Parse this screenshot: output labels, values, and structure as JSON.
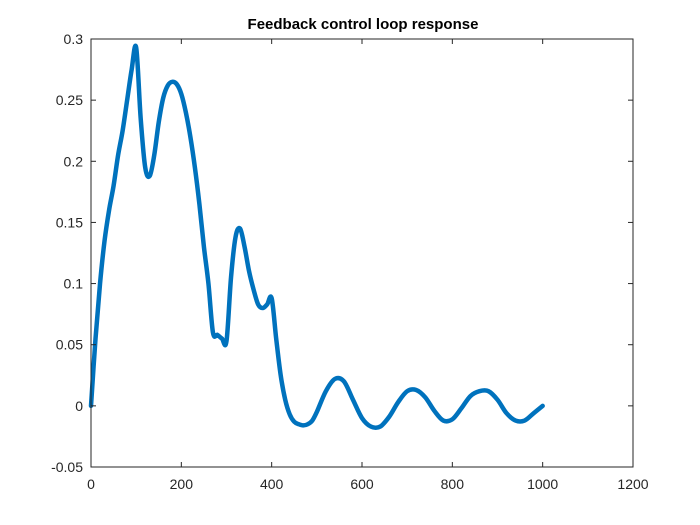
{
  "chart_data": {
    "type": "line",
    "title": "Feedback control loop response",
    "xlabel": "",
    "ylabel": "",
    "xlim": [
      0,
      1200
    ],
    "ylim": [
      -0.05,
      0.3
    ],
    "xticks": [
      0,
      200,
      400,
      600,
      800,
      1000,
      1200
    ],
    "xtick_labels": [
      "0",
      "200",
      "400",
      "600",
      "800",
      "1000",
      "1200"
    ],
    "yticks": [
      -0.05,
      0,
      0.05,
      0.1,
      0.15,
      0.2,
      0.25,
      0.3
    ],
    "ytick_labels": [
      "-0.05",
      "0",
      "0.05",
      "0.1",
      "0.15",
      "0.2",
      "0.25",
      "0.3"
    ],
    "grid": false,
    "series": [
      {
        "color": "#0072BD",
        "x": [
          0,
          10,
          20,
          30,
          40,
          50,
          60,
          70,
          80,
          90,
          100,
          110,
          120,
          130,
          140,
          150,
          160,
          170,
          180,
          190,
          200,
          210,
          220,
          230,
          240,
          250,
          260,
          270,
          280,
          290,
          300,
          310,
          320,
          330,
          340,
          350,
          360,
          370,
          380,
          390,
          400,
          410,
          420,
          430,
          440,
          450,
          460,
          470,
          480,
          490,
          500,
          520,
          540,
          560,
          580,
          600,
          620,
          640,
          660,
          680,
          700,
          720,
          740,
          760,
          780,
          800,
          820,
          840,
          860,
          880,
          900,
          920,
          940,
          960,
          980,
          1000
        ],
        "y": [
          0,
          0.055,
          0.1,
          0.135,
          0.16,
          0.18,
          0.205,
          0.225,
          0.25,
          0.275,
          0.293,
          0.235,
          0.195,
          0.188,
          0.205,
          0.232,
          0.252,
          0.262,
          0.265,
          0.263,
          0.255,
          0.24,
          0.22,
          0.195,
          0.165,
          0.13,
          0.1,
          0.06,
          0.058,
          0.055,
          0.053,
          0.105,
          0.138,
          0.145,
          0.13,
          0.11,
          0.095,
          0.083,
          0.08,
          0.083,
          0.088,
          0.055,
          0.025,
          0.005,
          -0.007,
          -0.013,
          -0.015,
          -0.016,
          -0.015,
          -0.012,
          -0.005,
          0.012,
          0.022,
          0.02,
          0.005,
          -0.01,
          -0.017,
          -0.017,
          -0.009,
          0.003,
          0.012,
          0.013,
          0.007,
          -0.004,
          -0.012,
          -0.011,
          -0.002,
          0.008,
          0.012,
          0.012,
          0.005,
          -0.006,
          -0.012,
          -0.012,
          -0.006,
          0
        ]
      }
    ]
  }
}
